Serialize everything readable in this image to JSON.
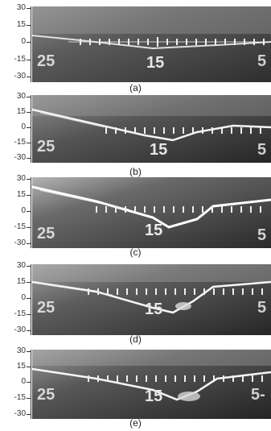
{
  "figure": {
    "y_ticks": [
      "30",
      "15",
      "0",
      "-15",
      "-30"
    ],
    "panels": [
      {
        "caption": "(a)",
        "scale_labels": [
          "25",
          "15",
          "5"
        ]
      },
      {
        "caption": "(b)",
        "scale_labels": [
          "25",
          "15",
          "5"
        ]
      },
      {
        "caption": "(c)",
        "scale_labels": [
          "25",
          "15",
          "5"
        ]
      },
      {
        "caption": "(d)",
        "scale_labels": [
          "25",
          "15",
          "5"
        ]
      },
      {
        "caption": "(e)",
        "scale_labels": [
          "25",
          "15",
          "5-"
        ]
      }
    ]
  },
  "colors": {
    "photo_dark": "#2a2a2a",
    "photo_mid": "#5a5a5a",
    "photo_light": "#9a9a9a",
    "trace": "#f2f2f2"
  }
}
